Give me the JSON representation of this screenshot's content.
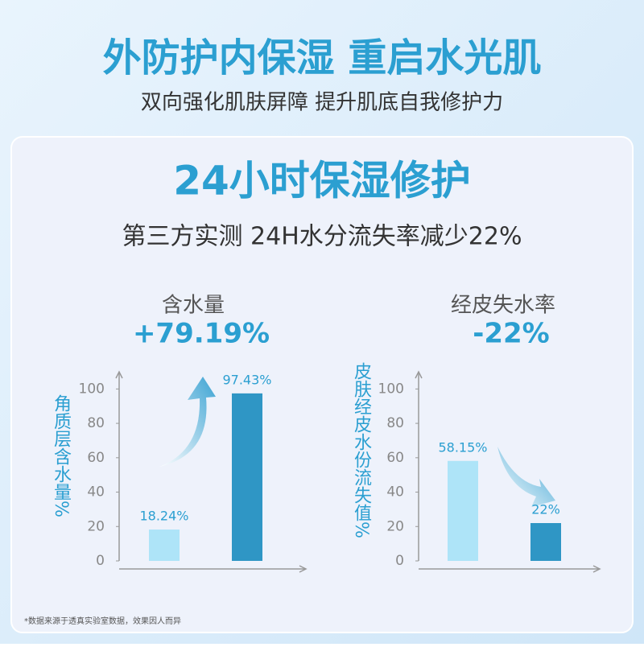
{
  "header": {
    "title": "外防护内保湿 重启水光肌",
    "subtitle": "双向强化肌肤屏障 提升肌底自我修护力"
  },
  "card": {
    "heading": "24小时保湿修护",
    "subheading": "第三方实测 24H水分流失率减少22%"
  },
  "chart_data": [
    {
      "type": "bar",
      "title": "含水量",
      "annotation": "+79.19%",
      "y_label": "角质层含水量%",
      "categories": [
        null,
        null
      ],
      "values": [
        18.24,
        97.43
      ],
      "value_labels": [
        "18.24%",
        "97.43%"
      ],
      "colors": [
        "#aee4f8",
        "#2f96c5"
      ],
      "ylim": [
        0,
        110
      ],
      "yticks": [
        0,
        20,
        40,
        60,
        80,
        100
      ]
    },
    {
      "type": "bar",
      "title": "经皮失水率",
      "annotation": "-22%",
      "y_label": "皮肤经皮水份流失值%",
      "categories": [
        null,
        null
      ],
      "values": [
        58.15,
        22
      ],
      "value_labels": [
        "58.15%",
        "22%"
      ],
      "colors": [
        "#aee4f8",
        "#2f96c5"
      ],
      "ylim": [
        0,
        110
      ],
      "yticks": [
        0,
        20,
        40,
        60,
        80,
        100
      ]
    }
  ],
  "footnote": "*数据来源于透真实验室数据，效果因人而异"
}
